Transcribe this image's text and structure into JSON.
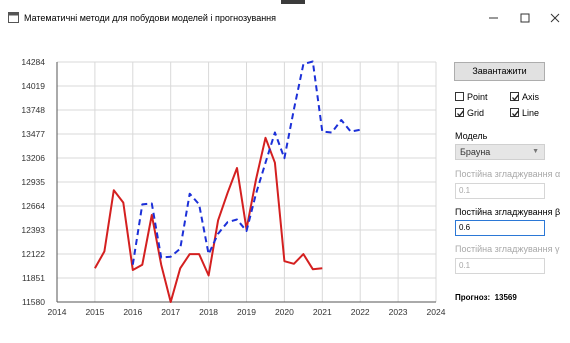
{
  "window": {
    "title": "Математичні методи для побудови моделей і прогнозування",
    "icon": "app-window-icon",
    "controls": [
      "minimize-icon",
      "maximize-icon",
      "close-icon"
    ]
  },
  "panel": {
    "load_label": "Завантажити",
    "checkboxes": {
      "point": {
        "label": "Point",
        "checked": false
      },
      "axis": {
        "label": "Axis",
        "checked": true
      },
      "grid": {
        "label": "Grid",
        "checked": true
      },
      "line": {
        "label": "Line",
        "checked": true
      }
    },
    "model_label": "Модель",
    "model_value": "Брауна",
    "alpha_label": "Постійна згладжування α",
    "alpha_value": "0.1",
    "beta_label": "Постійна згладжування β",
    "beta_value": "0.6",
    "gamma_label": "Постійна згладжування γ",
    "gamma_value": "0.1",
    "forecast_label": "Прогноз:",
    "forecast_value": "13569"
  },
  "chart_data": {
    "type": "line",
    "x_ticks": [
      "2014",
      "2015",
      "2016",
      "2017",
      "2018",
      "2019",
      "2020",
      "2021",
      "2022",
      "2023",
      "2024"
    ],
    "y_ticks": [
      "11580",
      "11851",
      "12122",
      "12393",
      "12664",
      "12935",
      "13206",
      "13477",
      "13748",
      "14019",
      "14284"
    ],
    "xlim": [
      2014,
      2024
    ],
    "ylim": [
      11580,
      14284
    ],
    "grid": true,
    "series": [
      {
        "color": "#d42020",
        "dash": false,
        "points": [
          [
            2015.0,
            11960
          ],
          [
            2015.25,
            12150
          ],
          [
            2015.5,
            12840
          ],
          [
            2015.75,
            12700
          ],
          [
            2016.0,
            11940
          ],
          [
            2016.25,
            12000
          ],
          [
            2016.5,
            12560
          ],
          [
            2016.75,
            12000
          ],
          [
            2017.0,
            11580
          ],
          [
            2017.25,
            11960
          ],
          [
            2017.5,
            12120
          ],
          [
            2017.75,
            12120
          ],
          [
            2018.0,
            11880
          ],
          [
            2018.25,
            12500
          ],
          [
            2018.5,
            12810
          ],
          [
            2018.75,
            13090
          ],
          [
            2019.0,
            12400
          ],
          [
            2019.25,
            12960
          ],
          [
            2019.5,
            13430
          ],
          [
            2019.75,
            13150
          ],
          [
            2020.0,
            12040
          ],
          [
            2020.25,
            12010
          ],
          [
            2020.5,
            12120
          ],
          [
            2020.75,
            11950
          ],
          [
            2021.0,
            11960
          ]
        ]
      },
      {
        "color": "#1c30d8",
        "dash": true,
        "points": [
          [
            2016.0,
            12000
          ],
          [
            2016.25,
            12680
          ],
          [
            2016.5,
            12690
          ],
          [
            2016.75,
            12080
          ],
          [
            2017.0,
            12090
          ],
          [
            2017.25,
            12180
          ],
          [
            2017.5,
            12800
          ],
          [
            2017.75,
            12680
          ],
          [
            2018.0,
            12120
          ],
          [
            2018.25,
            12350
          ],
          [
            2018.5,
            12480
          ],
          [
            2018.75,
            12510
          ],
          [
            2019.0,
            12380
          ],
          [
            2019.25,
            12800
          ],
          [
            2019.5,
            13150
          ],
          [
            2019.75,
            13490
          ],
          [
            2020.0,
            13200
          ],
          [
            2020.25,
            13750
          ],
          [
            2020.5,
            14260
          ],
          [
            2020.75,
            14290
          ],
          [
            2021.0,
            13500
          ],
          [
            2021.25,
            13490
          ],
          [
            2021.5,
            13630
          ],
          [
            2021.75,
            13500
          ],
          [
            2022.0,
            13520
          ]
        ]
      }
    ]
  }
}
